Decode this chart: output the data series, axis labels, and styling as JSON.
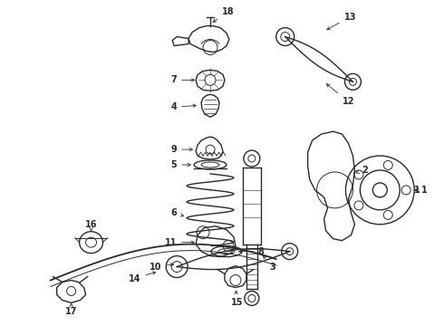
{
  "bg_color": "#ffffff",
  "line_color": "#2a2a2a",
  "figsize": [
    4.9,
    3.6
  ],
  "dpi": 100,
  "label_fontsize": 7.0,
  "label_fontweight": "bold",
  "arrow_lw": 0.6
}
